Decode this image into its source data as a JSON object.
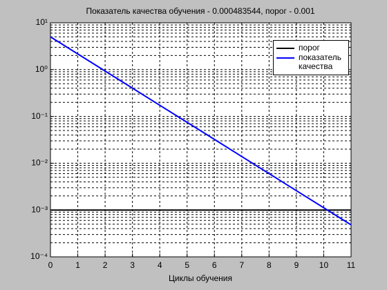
{
  "chart_data": {
    "type": "line",
    "title": "Показатель качества обучения - 0.000483544, порог - 0.001",
    "x_label": "Циклы обучения",
    "x": [
      0,
      1,
      2,
      3,
      4,
      5,
      6,
      7,
      8,
      9,
      10,
      11
    ],
    "series": [
      {
        "name": "порог",
        "color": "#000000",
        "values": [
          0.001,
          0.001,
          0.001,
          0.001,
          0.001,
          0.001,
          0.001,
          0.001,
          0.001,
          0.001,
          0.001,
          0.001
        ]
      },
      {
        "name": "показатель качества",
        "color": "#0000ff",
        "values": [
          5,
          2.16,
          0.931,
          0.402,
          0.173,
          0.0748,
          0.0323,
          0.0139,
          0.00601,
          0.00259,
          0.00112,
          0.000483544
        ]
      }
    ],
    "xlim": [
      0,
      11
    ],
    "xticks": [
      0,
      1,
      2,
      3,
      4,
      5,
      6,
      7,
      8,
      9,
      10,
      11
    ],
    "ylim": [
      0.0001,
      10
    ],
    "y_scale": "log",
    "yticks": [
      {
        "value": 0.0001,
        "label": "10⁻⁴"
      },
      {
        "value": 0.001,
        "label": "10⁻³"
      },
      {
        "value": 0.01,
        "label": "10⁻²"
      },
      {
        "value": 0.1,
        "label": "10⁻¹"
      },
      {
        "value": 1,
        "label": "10⁰"
      },
      {
        "value": 10,
        "label": "10¹"
      }
    ],
    "grid": true,
    "legend": "upper right"
  }
}
